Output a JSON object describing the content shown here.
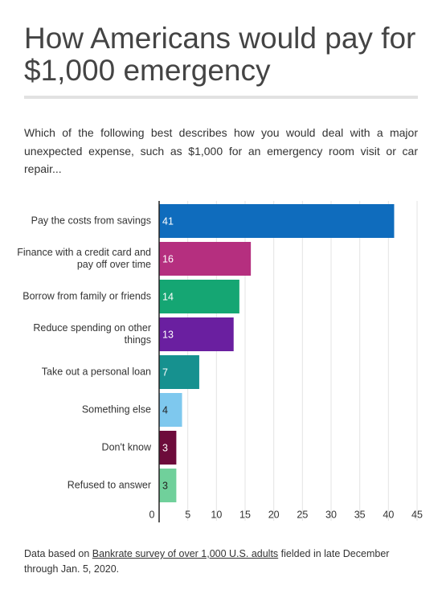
{
  "chart_data": {
    "type": "bar",
    "orientation": "horizontal",
    "title": "How Americans would pay for $1,000 emergency",
    "subtitle": "Which of the following best describes how you would deal with a major unexpected expense, such as $1,000 for an emergency room visit or car repair...",
    "categories": [
      "Pay the costs from savings",
      "Finance with a credit card and pay off over time",
      "Borrow from family or friends",
      "Reduce spending on other things",
      "Take out a personal loan",
      "Something else",
      "Don't know",
      "Refused to answer"
    ],
    "values": [
      41,
      16,
      14,
      13,
      7,
      4,
      3,
      3
    ],
    "colors": [
      "#0f6cbd",
      "#b52f7f",
      "#15a673",
      "#6a1fa0",
      "#16918f",
      "#7ec8ee",
      "#6d0b3b",
      "#70d09b"
    ],
    "xlim": [
      0,
      45
    ],
    "xticks": [
      0,
      5,
      10,
      15,
      20,
      25,
      30,
      35,
      40,
      45
    ],
    "grid": true,
    "source": {
      "before": "Data based on ",
      "link": "Bankrate survey of over 1,000 U.S. adults",
      "after": " fielded in late December through Jan. 5, 2020."
    }
  }
}
